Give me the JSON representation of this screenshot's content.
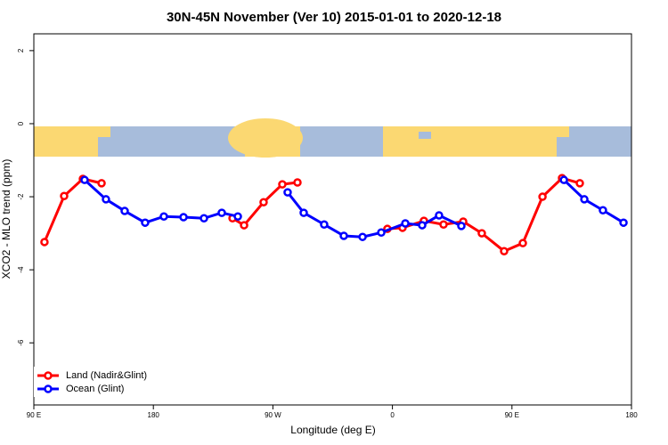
{
  "chart_data": {
    "type": "line",
    "title": "30N-45N November (Ver 10)   2015-01-01 to 2020-12-18",
    "x_label": "Longitude (deg E)",
    "y_label": "XCO2 - MLO trend (ppm)",
    "xlim": [
      90,
      540
    ],
    "xticks": [
      {
        "value": 90,
        "label": "90 E"
      },
      {
        "value": 180,
        "label": "180"
      },
      {
        "value": 270,
        "label": "90 W"
      },
      {
        "value": 360,
        "label": "0"
      },
      {
        "value": 450,
        "label": "90 E"
      },
      {
        "value": 540,
        "label": "180"
      }
    ],
    "ylim": [
      -7.7,
      2.46
    ],
    "yticks": [
      -6,
      -4,
      -2,
      0,
      2
    ],
    "legend": "bottom-left",
    "series": [
      {
        "name": "Land (Nadir&Glint)",
        "color": "#ff0000",
        "x": [
          98,
          112.8,
          126.9,
          141,
          null,
          239.6,
          248.3,
          263,
          277.1,
          288.5,
          null,
          356.2,
          367.6,
          383.7,
          398.5,
          413.3,
          427.3,
          444.1,
          458.2,
          473,
          487.7,
          501.1
        ],
        "values": [
          -3.24,
          -1.98,
          -1.51,
          -1.63,
          null,
          -2.59,
          -2.78,
          -2.15,
          -1.66,
          -1.61,
          null,
          -2.88,
          -2.85,
          -2.66,
          -2.76,
          -2.68,
          -3.0,
          -3.49,
          -3.27,
          -2.0,
          -1.49,
          -1.63
        ]
      },
      {
        "name": "Ocean (Glint)",
        "color": "#0000ff",
        "x": [
          128.2,
          144.3,
          158.4,
          173.8,
          187.9,
          202.7,
          218.1,
          231.5,
          243.6,
          null,
          281.1,
          293.2,
          308.6,
          323.4,
          337.5,
          351.6,
          369.7,
          382.4,
          395.1,
          411.9,
          null,
          489.1,
          504.5,
          518.5,
          534
        ],
        "values": [
          -1.54,
          -2.07,
          -2.39,
          -2.71,
          -2.54,
          -2.56,
          -2.59,
          -2.44,
          -2.54,
          null,
          -1.88,
          -2.44,
          -2.76,
          -3.07,
          -3.1,
          -2.98,
          -2.73,
          -2.78,
          -2.51,
          -2.8,
          null,
          -1.54,
          -2.07,
          -2.37,
          -2.71
        ]
      }
    ]
  }
}
